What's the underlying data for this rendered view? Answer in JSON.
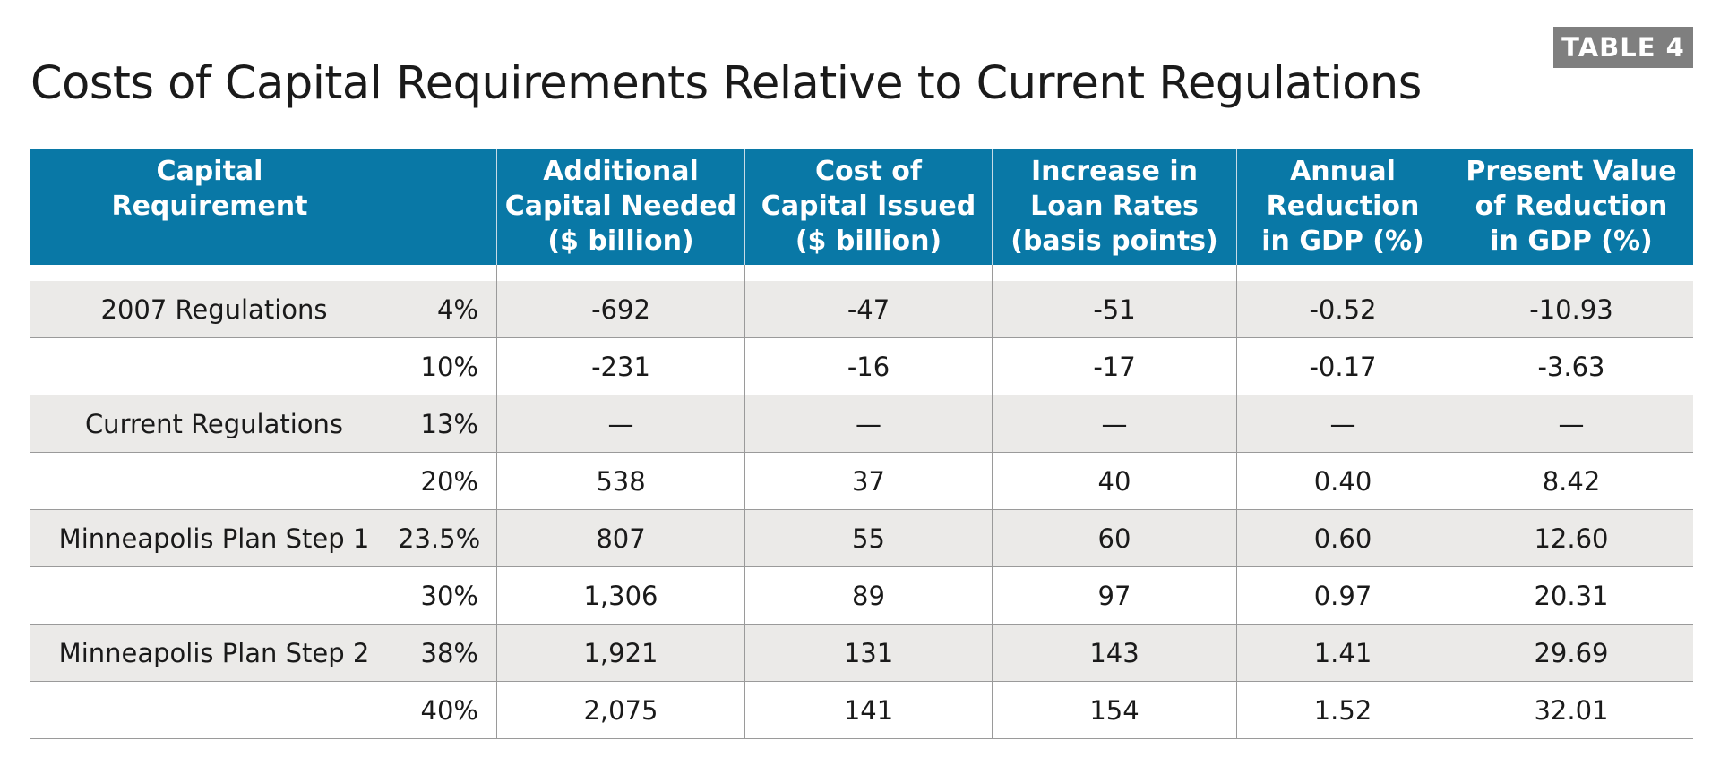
{
  "badge": "TABLE 4",
  "title": "Costs of Capital Requirements Relative to Current Regulations",
  "columns": [
    "Capital\nRequirement",
    "Additional\nCapital Needed\n($ billion)",
    "Cost of\nCapital Issued\n($ billion)",
    "Increase in\nLoan Rates\n(basis points)",
    "Annual\nReduction\nin GDP (%)",
    "Present Value\nof Reduction\nin GDP (%)"
  ],
  "rows": [
    {
      "label": "2007 Regulations",
      "pct": "4%",
      "additional": "-692",
      "cost": "-47",
      "loan": "-51",
      "annual": "-0.52",
      "pv": "-10.93"
    },
    {
      "label": "",
      "pct": "10%",
      "additional": "-231",
      "cost": "-16",
      "loan": "-17",
      "annual": "-0.17",
      "pv": "-3.63"
    },
    {
      "label": "Current Regulations",
      "pct": "13%",
      "additional": "—",
      "cost": "—",
      "loan": "—",
      "annual": "—",
      "pv": "—"
    },
    {
      "label": "",
      "pct": "20%",
      "additional": "538",
      "cost": "37",
      "loan": "40",
      "annual": "0.40",
      "pv": "8.42"
    },
    {
      "label": "Minneapolis Plan Step 1",
      "pct": "23.5%",
      "additional": "807",
      "cost": "55",
      "loan": "60",
      "annual": "0.60",
      "pv": "12.60"
    },
    {
      "label": "",
      "pct": "30%",
      "additional": "1,306",
      "cost": "89",
      "loan": "97",
      "annual": "0.97",
      "pv": "20.31"
    },
    {
      "label": "Minneapolis Plan Step 2",
      "pct": "38%",
      "additional": "1,921",
      "cost": "131",
      "loan": "143",
      "annual": "1.41",
      "pv": "29.69"
    },
    {
      "label": "",
      "pct": "40%",
      "additional": "2,075",
      "cost": "141",
      "loan": "154",
      "annual": "1.52",
      "pv": "32.01"
    }
  ],
  "colors": {
    "header_bg": "#0978a6",
    "row_shade": "#ebeae8",
    "badge_bg": "#7f7f7f"
  }
}
